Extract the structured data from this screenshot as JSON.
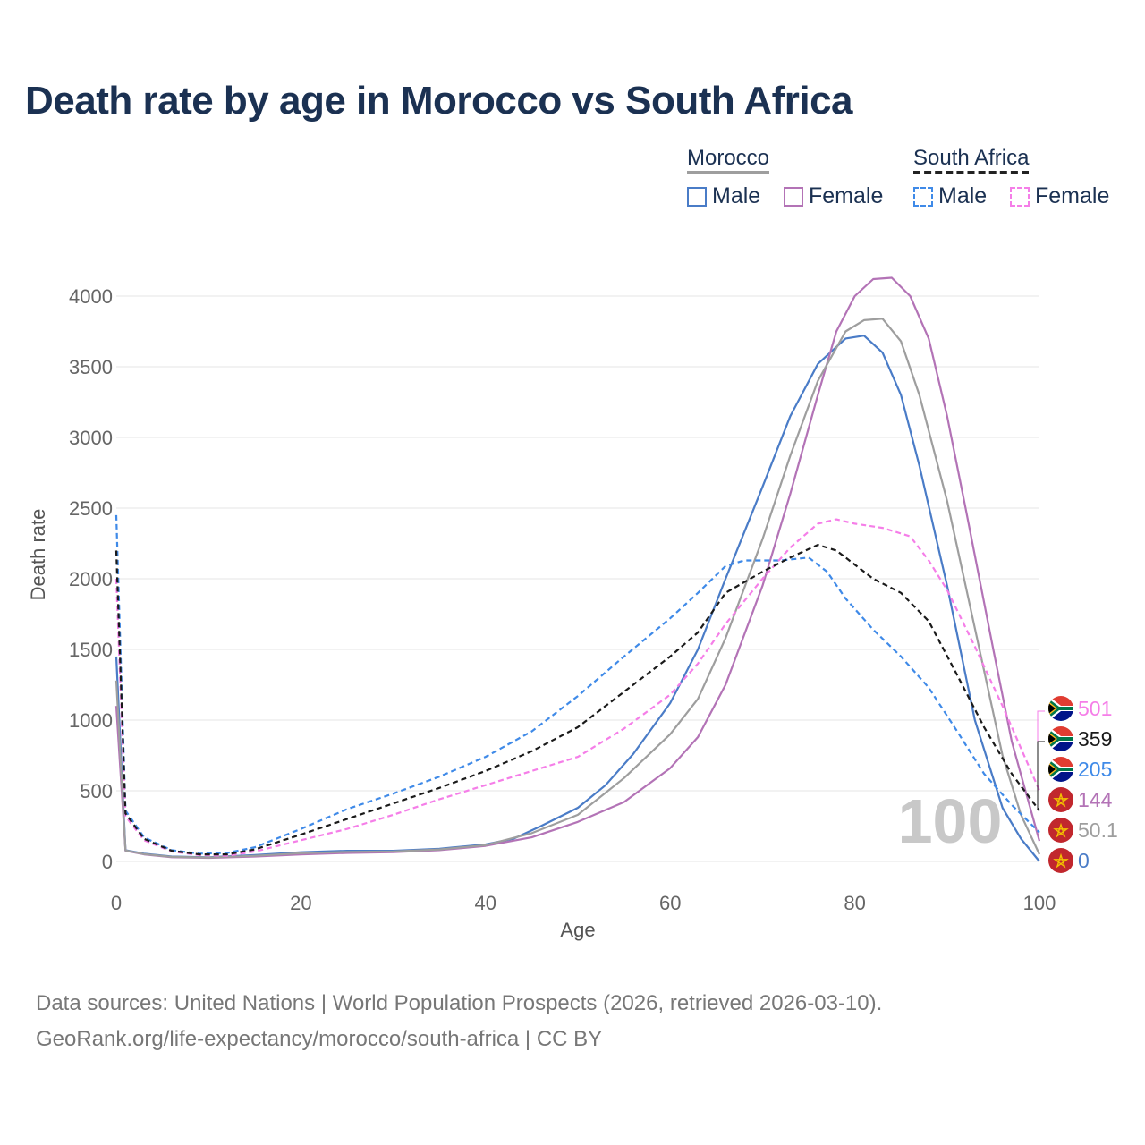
{
  "title": "Death rate by age in Morocco vs South Africa",
  "legend": {
    "morocco": {
      "label": "Morocco",
      "underline_color": "#9e9e9e",
      "male": "Male",
      "female": "Female"
    },
    "south_africa": {
      "label": "South Africa",
      "underline_color": "#222222",
      "male": "Male",
      "female": "Female"
    }
  },
  "source": {
    "line1": "Data sources: United Nations | World Population Prospects (2026, retrieved 2026-03-10).",
    "line2": "GeoRank.org/life-expectancy/morocco/south-africa | CC BY"
  },
  "watermark": "100",
  "chart_data": {
    "type": "line",
    "title": "Death rate by age in Morocco vs South Africa",
    "xlabel": "Age",
    "ylabel": "Death rate",
    "xlim": [
      0,
      100
    ],
    "ylim": [
      0,
      4200
    ],
    "xticks": [
      0,
      20,
      40,
      60,
      80,
      100
    ],
    "yticks": [
      0,
      500,
      1000,
      1500,
      2000,
      2500,
      3000,
      3500,
      4000
    ],
    "grid": true,
    "series": [
      {
        "name": "Morocco Male",
        "color": "#4a7cc7",
        "dash": "",
        "points": [
          [
            0,
            1450
          ],
          [
            1,
            80
          ],
          [
            3,
            55
          ],
          [
            6,
            35
          ],
          [
            10,
            30
          ],
          [
            15,
            45
          ],
          [
            20,
            65
          ],
          [
            25,
            75
          ],
          [
            30,
            75
          ],
          [
            35,
            90
          ],
          [
            40,
            120
          ],
          [
            43,
            160
          ],
          [
            46,
            250
          ],
          [
            50,
            380
          ],
          [
            53,
            540
          ],
          [
            56,
            760
          ],
          [
            60,
            1120
          ],
          [
            63,
            1500
          ],
          [
            66,
            2000
          ],
          [
            70,
            2650
          ],
          [
            73,
            3150
          ],
          [
            76,
            3520
          ],
          [
            79,
            3700
          ],
          [
            81,
            3720
          ],
          [
            83,
            3600
          ],
          [
            85,
            3300
          ],
          [
            87,
            2800
          ],
          [
            90,
            1950
          ],
          [
            93,
            1000
          ],
          [
            96,
            380
          ],
          [
            98,
            160
          ],
          [
            100,
            0
          ]
        ]
      },
      {
        "name": "Morocco Female",
        "color": "#b373b6",
        "dash": "",
        "points": [
          [
            0,
            1100
          ],
          [
            1,
            75
          ],
          [
            3,
            50
          ],
          [
            6,
            30
          ],
          [
            10,
            25
          ],
          [
            15,
            35
          ],
          [
            20,
            50
          ],
          [
            25,
            60
          ],
          [
            30,
            65
          ],
          [
            35,
            80
          ],
          [
            40,
            110
          ],
          [
            45,
            170
          ],
          [
            50,
            280
          ],
          [
            55,
            420
          ],
          [
            60,
            660
          ],
          [
            63,
            880
          ],
          [
            66,
            1250
          ],
          [
            70,
            1950
          ],
          [
            73,
            2600
          ],
          [
            76,
            3300
          ],
          [
            78,
            3750
          ],
          [
            80,
            4000
          ],
          [
            82,
            4120
          ],
          [
            84,
            4130
          ],
          [
            86,
            4000
          ],
          [
            88,
            3700
          ],
          [
            90,
            3150
          ],
          [
            92,
            2500
          ],
          [
            95,
            1500
          ],
          [
            97,
            850
          ],
          [
            100,
            144
          ]
        ]
      },
      {
        "name": "Morocco Total",
        "color": "#9e9e9e",
        "dash": "",
        "points": [
          [
            0,
            1280
          ],
          [
            1,
            78
          ],
          [
            3,
            52
          ],
          [
            6,
            32
          ],
          [
            10,
            28
          ],
          [
            15,
            40
          ],
          [
            20,
            58
          ],
          [
            25,
            68
          ],
          [
            30,
            70
          ],
          [
            35,
            85
          ],
          [
            40,
            115
          ],
          [
            45,
            200
          ],
          [
            50,
            330
          ],
          [
            55,
            590
          ],
          [
            60,
            900
          ],
          [
            63,
            1150
          ],
          [
            66,
            1580
          ],
          [
            70,
            2280
          ],
          [
            73,
            2870
          ],
          [
            76,
            3400
          ],
          [
            79,
            3750
          ],
          [
            81,
            3830
          ],
          [
            83,
            3840
          ],
          [
            85,
            3680
          ],
          [
            87,
            3300
          ],
          [
            90,
            2550
          ],
          [
            93,
            1650
          ],
          [
            96,
            750
          ],
          [
            98,
            330
          ],
          [
            100,
            50.1
          ]
        ]
      },
      {
        "name": "South Africa Male",
        "color": "#3f8ae8",
        "dash": "6,4",
        "points": [
          [
            0,
            2450
          ],
          [
            1,
            360
          ],
          [
            3,
            170
          ],
          [
            6,
            80
          ],
          [
            9,
            55
          ],
          [
            12,
            60
          ],
          [
            15,
            100
          ],
          [
            20,
            230
          ],
          [
            25,
            370
          ],
          [
            30,
            480
          ],
          [
            35,
            600
          ],
          [
            40,
            740
          ],
          [
            45,
            920
          ],
          [
            50,
            1170
          ],
          [
            55,
            1450
          ],
          [
            60,
            1720
          ],
          [
            63,
            1900
          ],
          [
            66,
            2090
          ],
          [
            68,
            2130
          ],
          [
            72,
            2130
          ],
          [
            75,
            2150
          ],
          [
            77,
            2050
          ],
          [
            79,
            1860
          ],
          [
            82,
            1640
          ],
          [
            85,
            1450
          ],
          [
            88,
            1230
          ],
          [
            91,
            930
          ],
          [
            94,
            620
          ],
          [
            97,
            400
          ],
          [
            100,
            205
          ]
        ]
      },
      {
        "name": "South Africa Female",
        "color": "#f57ee8",
        "dash": "6,4",
        "points": [
          [
            0,
            2000
          ],
          [
            1,
            320
          ],
          [
            3,
            150
          ],
          [
            6,
            70
          ],
          [
            9,
            45
          ],
          [
            12,
            40
          ],
          [
            15,
            70
          ],
          [
            20,
            150
          ],
          [
            25,
            230
          ],
          [
            30,
            330
          ],
          [
            35,
            440
          ],
          [
            40,
            540
          ],
          [
            45,
            640
          ],
          [
            50,
            740
          ],
          [
            55,
            940
          ],
          [
            60,
            1180
          ],
          [
            63,
            1400
          ],
          [
            66,
            1680
          ],
          [
            70,
            2000
          ],
          [
            73,
            2220
          ],
          [
            76,
            2390
          ],
          [
            78,
            2420
          ],
          [
            80,
            2390
          ],
          [
            83,
            2360
          ],
          [
            86,
            2300
          ],
          [
            88,
            2130
          ],
          [
            90,
            1920
          ],
          [
            93,
            1520
          ],
          [
            96,
            1100
          ],
          [
            100,
            501
          ]
        ]
      },
      {
        "name": "South Africa Total",
        "color": "#1a1a1a",
        "dash": "6,4",
        "points": [
          [
            0,
            2200
          ],
          [
            1,
            340
          ],
          [
            3,
            160
          ],
          [
            6,
            75
          ],
          [
            9,
            50
          ],
          [
            12,
            50
          ],
          [
            15,
            85
          ],
          [
            20,
            190
          ],
          [
            25,
            300
          ],
          [
            30,
            410
          ],
          [
            35,
            520
          ],
          [
            40,
            640
          ],
          [
            45,
            780
          ],
          [
            50,
            950
          ],
          [
            55,
            1200
          ],
          [
            60,
            1450
          ],
          [
            63,
            1620
          ],
          [
            66,
            1900
          ],
          [
            70,
            2050
          ],
          [
            73,
            2150
          ],
          [
            76,
            2240
          ],
          [
            78,
            2200
          ],
          [
            80,
            2100
          ],
          [
            82,
            2000
          ],
          [
            85,
            1900
          ],
          [
            88,
            1700
          ],
          [
            91,
            1330
          ],
          [
            94,
            950
          ],
          [
            97,
            620
          ],
          [
            100,
            359
          ]
        ]
      }
    ],
    "end_labels": [
      {
        "value": "501",
        "color": "#f57ee8",
        "country": "South Africa"
      },
      {
        "value": "359",
        "color": "#1a1a1a",
        "country": "South Africa"
      },
      {
        "value": "205",
        "color": "#3f8ae8",
        "country": "South Africa"
      },
      {
        "value": "144",
        "color": "#b373b6",
        "country": "Morocco"
      },
      {
        "value": "50.1",
        "color": "#9e9e9e",
        "country": "Morocco"
      },
      {
        "value": "0",
        "color": "#4a7cc7",
        "country": "Morocco"
      }
    ]
  }
}
